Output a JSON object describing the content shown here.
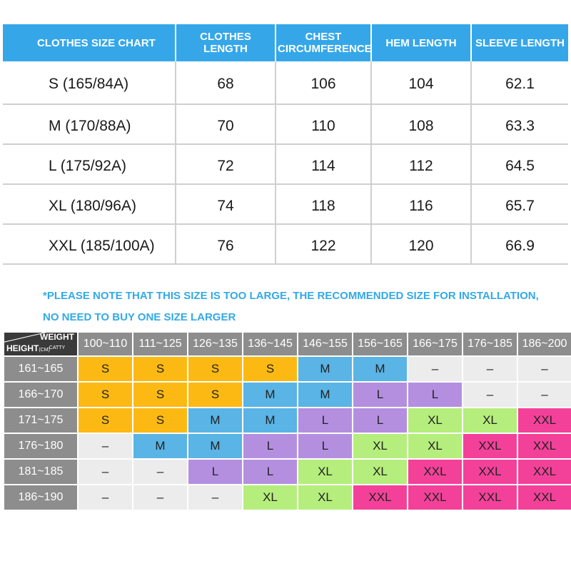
{
  "size_chart": {
    "headers": [
      "CLOTHES SIZE CHART",
      "CLOTHES LENGTH",
      "CHEST CIRCUMFERENCE",
      "HEM LENGTH",
      "SLEEVE LENGTH"
    ],
    "rows": [
      [
        "S (165/84A)",
        "68",
        "106",
        "104",
        "62.1"
      ],
      [
        "M (170/88A)",
        "70",
        "110",
        "108",
        "63.3"
      ],
      [
        "L (175/92A)",
        "72",
        "114",
        "112",
        "64.5"
      ],
      [
        "XL (180/96A)",
        "74",
        "118",
        "116",
        "65.7"
      ],
      [
        "XXL (185/100A)",
        "76",
        "122",
        "120",
        "66.9"
      ]
    ]
  },
  "note": {
    "line1": "*PLEASE NOTE THAT THIS SIZE IS TOO LARGE, THE RECOMMENDED SIZE FOR INSTALLATION,",
    "line2": "NO NEED TO BUY ONE SIZE LARGER"
  },
  "grid": {
    "corner": {
      "weight": "WEIGHT",
      "weight_unit": "CATTY",
      "height": "HEIGHT",
      "height_unit": "(CM)"
    },
    "weights": [
      "100~110",
      "111~125",
      "126~135",
      "136~145",
      "146~155",
      "156~165",
      "166~175",
      "176~185",
      "186~200"
    ],
    "heights": [
      "161~165",
      "166~170",
      "171~175",
      "176~180",
      "181~185",
      "186~190"
    ],
    "cells": [
      [
        "S",
        "S",
        "S",
        "S",
        "M",
        "M",
        "–",
        "–",
        "–"
      ],
      [
        "S",
        "S",
        "S",
        "M",
        "M",
        "L",
        "L",
        "–",
        "–"
      ],
      [
        "S",
        "S",
        "M",
        "M",
        "L",
        "L",
        "XL",
        "XL",
        "XXL"
      ],
      [
        "–",
        "M",
        "M",
        "L",
        "L",
        "XL",
        "XL",
        "XXL",
        "XXL"
      ],
      [
        "–",
        "–",
        "L",
        "L",
        "XL",
        "XL",
        "XXL",
        "XXL",
        "XXL"
      ],
      [
        "–",
        "–",
        "–",
        "XL",
        "XL",
        "XXL",
        "XXL",
        "XXL",
        "XXL"
      ]
    ],
    "colors": {
      "S": "#fdb913",
      "M": "#5ab4e5",
      "L": "#b48fe0",
      "XL": "#b5ee7c",
      "XXL": "#f3419a",
      "–": "#ececec"
    }
  }
}
